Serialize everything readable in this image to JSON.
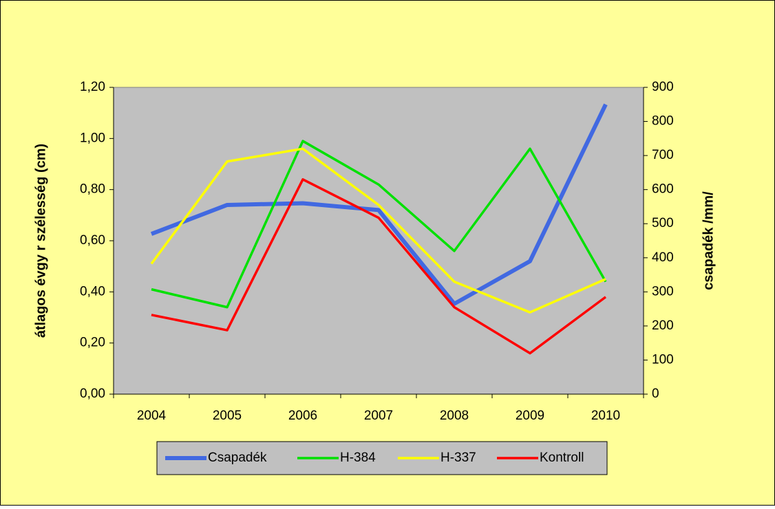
{
  "chart_data": {
    "type": "line",
    "categories": [
      "2004",
      "2005",
      "2006",
      "2007",
      "2008",
      "2009",
      "2010"
    ],
    "series": [
      {
        "name": "Csapadék",
        "color": "#4169e1",
        "axis": "y2",
        "values": [
          470,
          555,
          560,
          540,
          265,
          390,
          850
        ]
      },
      {
        "name": "H-384",
        "color": "#00e000",
        "values": [
          0.41,
          0.34,
          0.99,
          0.82,
          0.56,
          0.96,
          0.44
        ]
      },
      {
        "name": "H-337",
        "color": "#ffff00",
        "values": [
          0.51,
          0.91,
          0.96,
          0.74,
          0.44,
          0.32,
          0.45
        ]
      },
      {
        "name": "Kontroll",
        "color": "#ff0000",
        "values": [
          0.31,
          0.25,
          0.84,
          0.69,
          0.34,
          0.16,
          0.38
        ]
      }
    ],
    "ylabel": "átlagos évgy r szélesség (cm)",
    "y2label": "csapadék /mm/",
    "ylim": [
      0,
      1.2
    ],
    "yticks": [
      {
        "value": 0,
        "label": "0,00"
      },
      {
        "value": 0.2,
        "label": "0,20"
      },
      {
        "value": 0.4,
        "label": "0,40"
      },
      {
        "value": 0.6,
        "label": "0,60"
      },
      {
        "value": 0.8,
        "label": "0,80"
      },
      {
        "value": 1.0,
        "label": "1,00"
      },
      {
        "value": 1.2,
        "label": "1,20"
      }
    ],
    "y2lim": [
      0,
      900
    ],
    "y2ticks": [
      0,
      100,
      200,
      300,
      400,
      500,
      600,
      700,
      800,
      900
    ],
    "legend": "bottom"
  }
}
